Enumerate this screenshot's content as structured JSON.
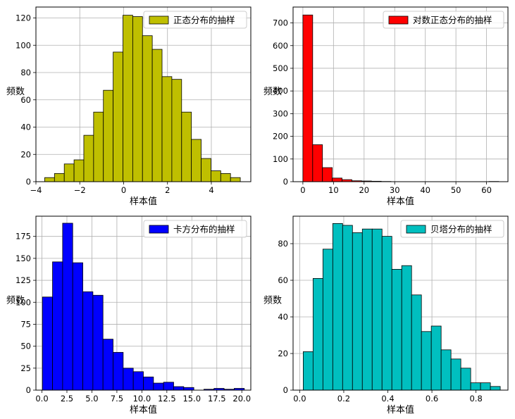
{
  "chart_data": [
    {
      "type": "bar",
      "subtype": "histogram",
      "legend": "正态分布的抽样",
      "legend_loc": "upper right",
      "xlabel": "样本值",
      "ylabel": "频数",
      "grid": true,
      "color": "#bfbf00",
      "xlim": [
        -4.0,
        5.8
      ],
      "ylim": [
        0,
        128
      ],
      "xticks": [
        -4,
        -2,
        0,
        2,
        4
      ],
      "xtick_labels": [
        "−4",
        "−2",
        "0",
        "2",
        "4"
      ],
      "yticks": [
        0,
        20,
        40,
        60,
        80,
        100,
        120
      ],
      "ytick_labels": [
        "0",
        "20",
        "40",
        "60",
        "80",
        "100",
        "120"
      ],
      "bin_start": -3.6,
      "bin_width": 0.446,
      "values": [
        3,
        6,
        13,
        16,
        34,
        51,
        67,
        95,
        122,
        121,
        107,
        97,
        77,
        75,
        51,
        31,
        17,
        8,
        6,
        3
      ]
    },
    {
      "type": "bar",
      "subtype": "histogram",
      "legend": "对数正态分布的抽样",
      "legend_loc": "upper right",
      "xlabel": "样本值",
      "ylabel": "频数",
      "grid": true,
      "color": "#ff0000",
      "xlim": [
        -3.2,
        67
      ],
      "ylim": [
        0,
        770
      ],
      "xticks": [
        0,
        10,
        20,
        30,
        40,
        50,
        60
      ],
      "xtick_labels": [
        "0",
        "10",
        "20",
        "30",
        "40",
        "50",
        "60"
      ],
      "yticks": [
        0,
        100,
        200,
        300,
        400,
        500,
        600,
        700
      ],
      "ytick_labels": [
        "0",
        "100",
        "200",
        "300",
        "400",
        "500",
        "600",
        "700"
      ],
      "bin_start": 0.0,
      "bin_width": 3.2,
      "values": [
        735,
        163,
        62,
        16,
        9,
        4,
        3,
        2,
        1,
        0,
        0,
        0,
        0,
        0,
        0,
        0,
        0,
        0,
        0,
        1
      ]
    },
    {
      "type": "bar",
      "subtype": "histogram",
      "legend": "卡方分布的抽样",
      "legend_loc": "upper right",
      "xlabel": "样本值",
      "ylabel": "频数",
      "grid": true,
      "color": "#0000ff",
      "xlim": [
        -0.6,
        20.9
      ],
      "ylim": [
        0,
        198
      ],
      "xticks": [
        0,
        2.5,
        5,
        7.5,
        10,
        12.5,
        15,
        17.5,
        20
      ],
      "xtick_labels": [
        "0.0",
        "2.5",
        "5.0",
        "7.5",
        "10.0",
        "12.5",
        "15.0",
        "17.5",
        "20.0"
      ],
      "yticks": [
        0,
        25,
        50,
        75,
        100,
        125,
        150,
        175
      ],
      "ytick_labels": [
        "0",
        "25",
        "50",
        "75",
        "100",
        "125",
        "150",
        "175"
      ],
      "bin_start": 0.05,
      "bin_width": 1.01,
      "values": [
        106,
        146,
        190,
        145,
        112,
        108,
        58,
        43,
        25,
        21,
        15,
        8,
        9,
        4,
        3,
        0,
        1,
        2,
        1,
        2
      ]
    },
    {
      "type": "bar",
      "subtype": "histogram",
      "legend": "贝塔分布的抽样",
      "legend_loc": "upper right",
      "xlabel": "样本值",
      "ylabel": "频数",
      "grid": true,
      "color": "#00bfbf",
      "xlim": [
        -0.03,
        0.945
      ],
      "ylim": [
        0,
        95
      ],
      "xticks": [
        0.0,
        0.2,
        0.4,
        0.6,
        0.8
      ],
      "xtick_labels": [
        "0.0",
        "0.2",
        "0.4",
        "0.6",
        "0.8"
      ],
      "yticks": [
        0,
        20,
        40,
        60,
        80
      ],
      "ytick_labels": [
        "0",
        "20",
        "40",
        "60",
        "80"
      ],
      "bin_start": 0.016,
      "bin_width": 0.0447,
      "values": [
        21,
        61,
        77,
        91,
        90,
        86,
        88,
        88,
        84,
        66,
        68,
        52,
        32,
        35,
        22,
        17,
        12,
        4,
        4,
        2
      ]
    }
  ]
}
